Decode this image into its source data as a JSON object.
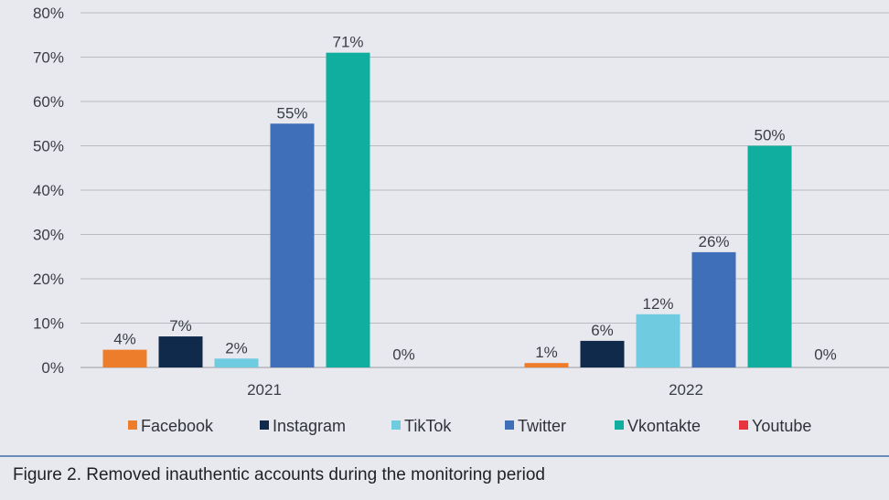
{
  "chart_data": {
    "type": "bar",
    "title": "",
    "xlabel": "",
    "ylabel": "",
    "categories": [
      "2021",
      "2022"
    ],
    "ylim": [
      0,
      80
    ],
    "yticks": [
      "0%",
      "10%",
      "20%",
      "30%",
      "40%",
      "50%",
      "60%",
      "70%",
      "80%"
    ],
    "ytick_values": [
      0,
      10,
      20,
      30,
      40,
      50,
      60,
      70,
      80
    ],
    "grid": true,
    "legend_position": "bottom",
    "series": [
      {
        "name": "Facebook",
        "color": "#ee7d2b",
        "values": [
          4,
          1
        ],
        "labels": [
          "4%",
          "1%"
        ]
      },
      {
        "name": "Instagram",
        "color": "#0f2a4a",
        "values": [
          7,
          6
        ],
        "labels": [
          "7%",
          "6%"
        ]
      },
      {
        "name": "TikTok",
        "color": "#6fcbe0",
        "values": [
          2,
          12
        ],
        "labels": [
          "2%",
          "12%"
        ]
      },
      {
        "name": "Twitter",
        "color": "#3f6fb8",
        "values": [
          55,
          26
        ],
        "labels": [
          "55%",
          "26%"
        ]
      },
      {
        "name": "Vkontakte",
        "color": "#10ae9f",
        "values": [
          71,
          50
        ],
        "labels": [
          "71%",
          "50%"
        ]
      },
      {
        "name": "Youtube",
        "color": "#e8343f",
        "values": [
          0,
          0
        ],
        "labels": [
          "0%",
          "0%"
        ]
      }
    ]
  },
  "caption": "Figure 2. Removed inauthentic accounts during the monitoring period"
}
